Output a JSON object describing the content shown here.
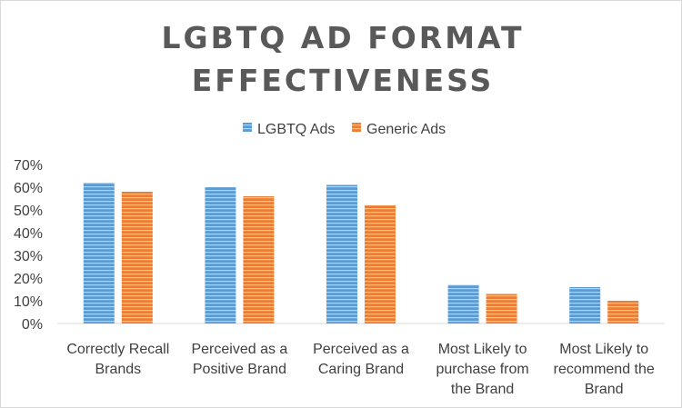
{
  "chart_data": {
    "type": "bar",
    "title_lines": [
      "LGBTQ AD FORMAT",
      "EFFECTIVENESS"
    ],
    "categories": [
      [
        "Correctly Recall",
        "Brands"
      ],
      [
        "Perceived as a",
        "Positive Brand"
      ],
      [
        "Perceived as a",
        "Caring Brand"
      ],
      [
        "Most Likely to",
        "purchase from",
        "the Brand"
      ],
      [
        "Most Likely to",
        "recommend the",
        "Brand"
      ]
    ],
    "series": [
      {
        "name": "LGBTQ Ads",
        "color": "#5b9bd5",
        "values": [
          62,
          60,
          61,
          17,
          16
        ]
      },
      {
        "name": "Generic Ads",
        "color": "#ed7d31",
        "values": [
          58,
          56,
          52,
          13,
          10
        ]
      }
    ],
    "y_ticks": [
      "0%",
      "10%",
      "20%",
      "30%",
      "40%",
      "50%",
      "60%",
      "70%"
    ],
    "ylim": [
      0,
      70
    ],
    "y_unit": "%",
    "legend_position": "top-center",
    "grid": false
  }
}
